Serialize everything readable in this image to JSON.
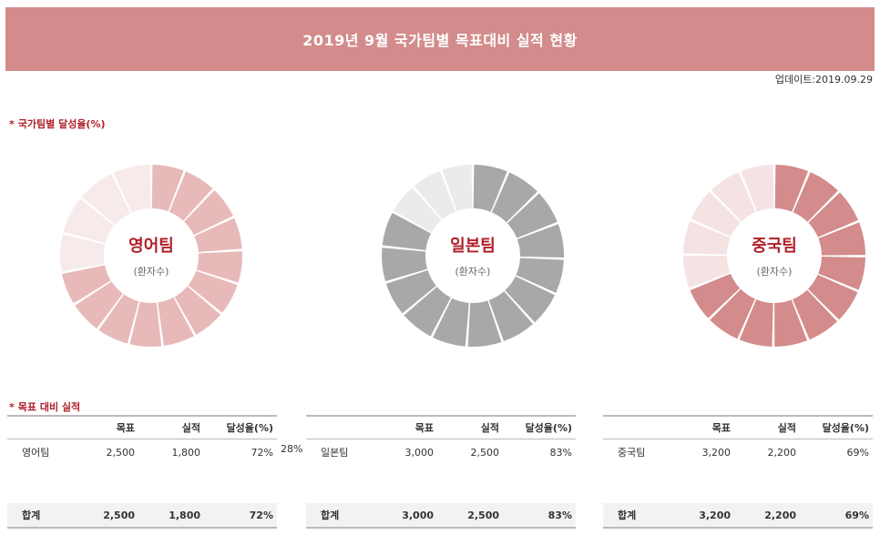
{
  "header": {
    "title": "2019년 9월 국가팀별 목표대비 실적 현황"
  },
  "updated": "업데이트:2019.09.29",
  "sections": {
    "achievement_title": "국가팀별 달성율(%)",
    "performance_title": "목표 대비 실적",
    "star": "*"
  },
  "donuts": [
    {
      "name": "영어팀",
      "sub": "(환자수)",
      "percent": 72,
      "color": "#e8b9b9",
      "rest_color": "#f7eaea"
    },
    {
      "name": "일본팀",
      "sub": "(환자수)",
      "percent": 83,
      "color": "#a8a8a8",
      "rest_color": "#ebebeb"
    },
    {
      "name": "중국팀",
      "sub": "(환자수)",
      "percent": 69,
      "color": "#d38b8b",
      "rest_color": "#f5e3e3"
    }
  ],
  "columns": [
    "",
    "목표",
    "실적",
    "달성율(%)"
  ],
  "tables": [
    {
      "row": {
        "team": "영어팀",
        "target": "2,500",
        "actual": "1,800",
        "rate": "72%"
      },
      "total": {
        "label": "합계",
        "target": "2,500",
        "actual": "1,800",
        "rate": "72%"
      }
    },
    {
      "row": {
        "team": "일본팀",
        "target": "3,000",
        "actual": "2,500",
        "rate": "83%"
      },
      "total": {
        "label": "합계",
        "target": "3,000",
        "actual": "2,500",
        "rate": "83%"
      }
    },
    {
      "row": {
        "team": "중국팀",
        "target": "3,200",
        "actual": "2,200",
        "rate": "69%"
      },
      "total": {
        "label": "합계",
        "target": "3,200",
        "actual": "2,200",
        "rate": "69%"
      }
    }
  ],
  "stray_value": "28%"
}
